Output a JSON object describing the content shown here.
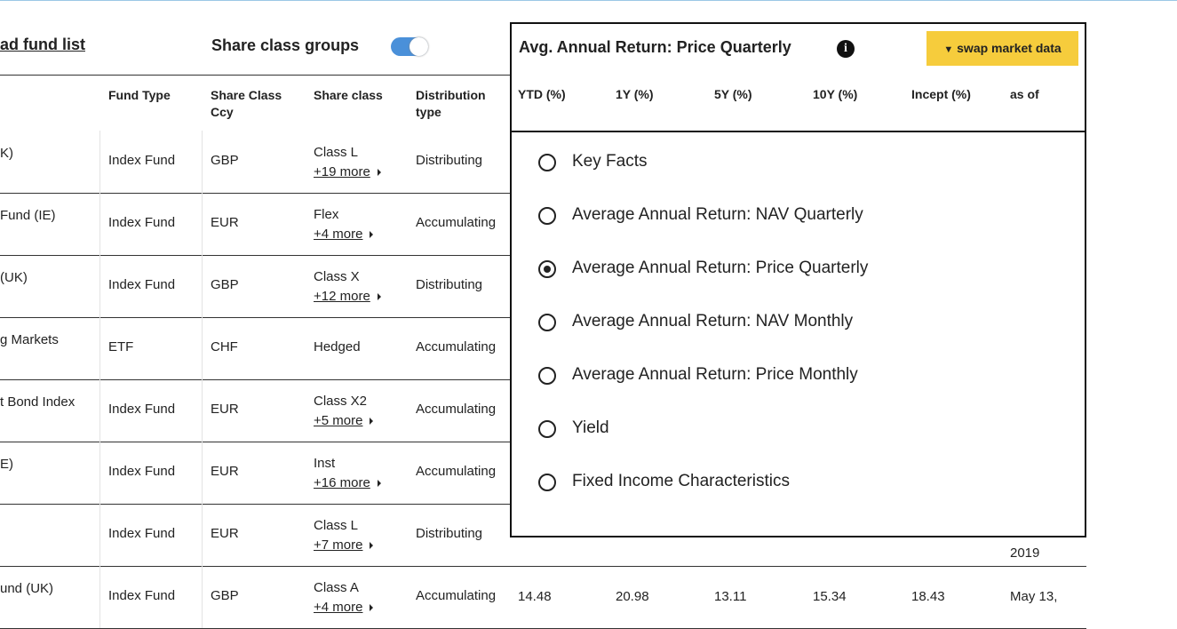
{
  "header": {
    "download_link": "ad fund list",
    "toggle_label": "Share class groups",
    "panel_title": "Avg. Annual Return: Price Quarterly",
    "swap_button": "swap market data"
  },
  "table": {
    "left_columns": [
      "Fund Type",
      "Share Class Ccy",
      "Share class",
      "Distribution type"
    ],
    "right_columns": [
      "YTD (%)",
      "1Y (%)",
      "5Y (%)",
      "10Y (%)",
      "Incept (%)",
      "as of"
    ],
    "rows": [
      {
        "name": "K)",
        "fund_type": "Index Fund",
        "ccy": "GBP",
        "share_class": "Class L",
        "more": "+19 more",
        "distribution": "Distributing"
      },
      {
        "name": "Fund (IE)",
        "fund_type": "Index Fund",
        "ccy": "EUR",
        "share_class": "Flex",
        "more": "+4 more",
        "distribution": "Accumulating"
      },
      {
        "name": "(UK)",
        "fund_type": "Index Fund",
        "ccy": "GBP",
        "share_class": "Class X",
        "more": "+12 more",
        "distribution": "Distributing"
      },
      {
        "name": "g Markets",
        "fund_type": "ETF",
        "ccy": "CHF",
        "share_class": "Hedged",
        "distribution": "Accumulating"
      },
      {
        "name": "t Bond Index",
        "fund_type": "Index Fund",
        "ccy": "EUR",
        "share_class": "Class X2",
        "more": "+5 more",
        "distribution": "Accumulating"
      },
      {
        "name": "E)",
        "fund_type": "Index Fund",
        "ccy": "EUR",
        "share_class": "Inst",
        "more": "+16 more",
        "distribution": "Accumulating"
      },
      {
        "fund_type": "Index Fund",
        "ccy": "EUR",
        "share_class": "Class L",
        "more": "+7 more",
        "distribution": "Distributing",
        "as_of": "2019"
      },
      {
        "name": "und (UK)",
        "fund_type": "Index Fund",
        "ccy": "GBP",
        "share_class": "Class A",
        "more": "+4 more",
        "distribution": "Accumulating",
        "ytd": "14.48",
        "y1": "20.98",
        "y5": "13.11",
        "y10": "15.34",
        "incept": "18.43",
        "as_of": "May 13,"
      }
    ]
  },
  "dropdown": {
    "options": [
      "Key Facts",
      "Average Annual Return: NAV Quarterly",
      "Average Annual Return: Price Quarterly",
      "Average Annual Return: NAV Monthly",
      "Average Annual Return: Price Monthly",
      "Yield",
      "Fixed Income Characteristics"
    ],
    "selected": 2
  }
}
